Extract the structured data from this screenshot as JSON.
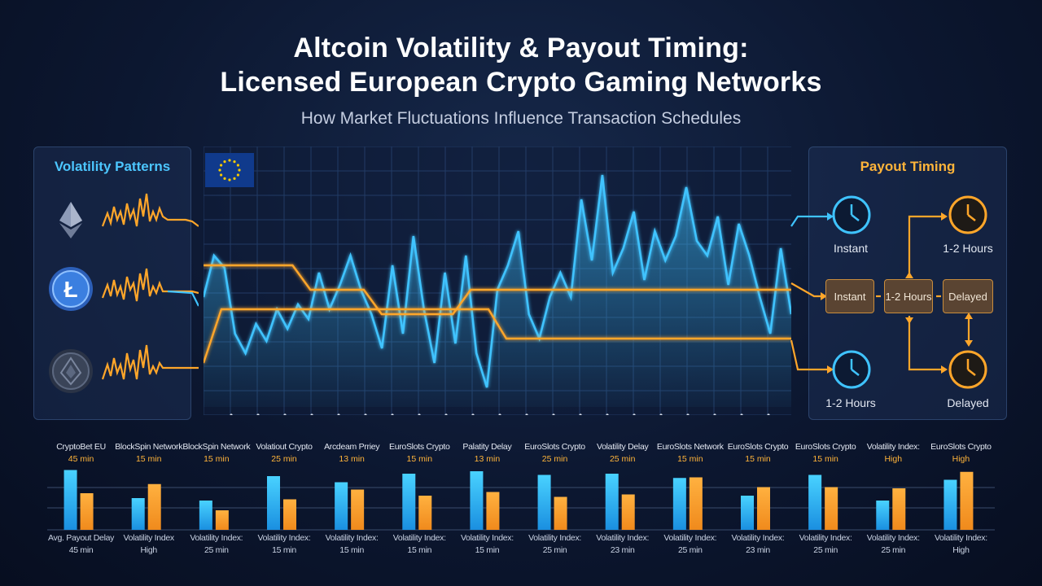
{
  "header": {
    "title_line1": "Altcoin Volatility & Payout Timing:",
    "title_line2": "Licensed European Crypto Gaming Networks",
    "subtitle": "How Market Fluctuations Influence Transaction Schedules"
  },
  "left_panel": {
    "title": "Volatility Patterns",
    "coins": [
      {
        "icon": "ethereum-icon",
        "color": "#8d9bb8"
      },
      {
        "icon": "litecoin-icon",
        "color": "#3b7fe0"
      },
      {
        "icon": "altcoin-icon",
        "color": "#5c6880"
      }
    ]
  },
  "right_panel": {
    "title": "Payout Timing",
    "stages": [
      "Instant",
      "1-2 Hours",
      "Delayed"
    ],
    "clocks": [
      {
        "label": "Instant",
        "color": "#3fc3ff"
      },
      {
        "label": "1-2 Hours",
        "color": "#ffa62a"
      },
      {
        "label": "1-2 Hours",
        "color": "#3fc3ff"
      },
      {
        "label": "Delayed",
        "color": "#ffa62a"
      }
    ]
  },
  "colors": {
    "volatility_blue": "#3fc3ff",
    "payout_orange": "#ffa62a",
    "background": "#0c1730"
  },
  "chart_data": [
    {
      "type": "line",
      "grid": true,
      "series": [
        {
          "values": [
            0.45,
            0.62,
            0.57,
            0.3,
            0.22,
            0.34,
            0.27,
            0.4,
            0.32,
            0.42,
            0.36,
            0.55,
            0.4,
            0.5,
            0.62,
            0.48,
            0.38,
            0.24,
            0.58,
            0.3,
            0.7,
            0.4,
            0.18,
            0.55,
            0.26,
            0.62,
            0.22,
            0.08,
            0.48,
            0.58,
            0.72,
            0.38,
            0.28,
            0.45,
            0.55,
            0.45,
            0.85,
            0.6,
            0.95,
            0.55,
            0.65,
            0.8,
            0.52,
            0.72,
            0.6,
            0.7,
            0.9,
            0.68,
            0.62,
            0.78,
            0.5,
            0.75,
            0.62,
            0.45,
            0.3,
            0.65,
            0.38
          ]
        },
        {
          "values": [
            0.58,
            0.58,
            0.58,
            0.58,
            0.58,
            0.58,
            0.48,
            0.48,
            0.48,
            0.48,
            0.38,
            0.38,
            0.38,
            0.38,
            0.38,
            0.48,
            0.48,
            0.48,
            0.48,
            0.48,
            0.48,
            0.48,
            0.48,
            0.48,
            0.48,
            0.48,
            0.48,
            0.48,
            0.48,
            0.48,
            0.48,
            0.48,
            0.48,
            0.48
          ]
        },
        {
          "values": [
            0.18,
            0.4,
            0.4,
            0.4,
            0.4,
            0.4,
            0.4,
            0.4,
            0.4,
            0.4,
            0.4,
            0.4,
            0.4,
            0.4,
            0.4,
            0.4,
            0.4,
            0.28,
            0.28,
            0.28,
            0.28,
            0.28,
            0.28,
            0.28,
            0.28,
            0.28,
            0.28,
            0.28,
            0.28,
            0.28,
            0.28,
            0.28,
            0.28,
            0.28
          ]
        }
      ]
    },
    {
      "type": "bar",
      "categories": [
        {
          "name": "CryptoBet EU",
          "value": "45 min",
          "bottom1": "Avg. Payout Delay",
          "bottom2": "45 min"
        },
        {
          "name": "BlockSpin Network",
          "value": "15 min",
          "bottom1": "Volatility Index",
          "bottom2": "High"
        },
        {
          "name": "BlockSpin Network",
          "value": "15 min",
          "bottom1": "Volatility Index:",
          "bottom2": "25 min"
        },
        {
          "name": "Volatiout Crypto",
          "value": "25 min",
          "bottom1": "Volatility Index:",
          "bottom2": "15 min"
        },
        {
          "name": "Arcdeam Prriey",
          "value": "13 min",
          "bottom1": "Volatility Index:",
          "bottom2": "15 min"
        },
        {
          "name": "EuroSlots Crypto",
          "value": "15 min",
          "bottom1": "Volatility Index:",
          "bottom2": "15 min"
        },
        {
          "name": "Palatity Delay",
          "value": "13 min",
          "bottom1": "Volatility Index:",
          "bottom2": "15 min"
        },
        {
          "name": "EuroSlots Crypto",
          "value": "25 min",
          "bottom1": "Volatility Index:",
          "bottom2": "25 min"
        },
        {
          "name": "Volatility Delay",
          "value": "25 min",
          "bottom1": "Volatility Index:",
          "bottom2": "23 min"
        },
        {
          "name": "EuroSlots Network",
          "value": "15 min",
          "bottom1": "Volatility Index:",
          "bottom2": "25 min"
        },
        {
          "name": "EuroSlots Crypto",
          "value": "15 min",
          "bottom1": "Volatility Index:",
          "bottom2": "23 min"
        },
        {
          "name": "EuroSlots Crypto",
          "value": "15 min",
          "bottom1": "Volatility Index:",
          "bottom2": "25 min"
        },
        {
          "name": "Volatility Index:",
          "value": "High",
          "bottom1": "Volatility Index:",
          "bottom2": "25 min"
        },
        {
          "name": "EuroSlots Crypto",
          "value": "High",
          "bottom1": "Volatility Index:",
          "bottom2": "High"
        }
      ],
      "series": [
        {
          "values": [
            0.98,
            0.52,
            0.48,
            0.88,
            0.78,
            0.92,
            0.96,
            0.9,
            0.92,
            0.85,
            0.56,
            0.9,
            0.48,
            0.82
          ]
        },
        {
          "values": [
            0.6,
            0.75,
            0.32,
            0.5,
            0.66,
            0.56,
            0.62,
            0.54,
            0.58,
            0.86,
            0.7,
            0.7,
            0.68,
            0.95
          ]
        }
      ]
    }
  ]
}
